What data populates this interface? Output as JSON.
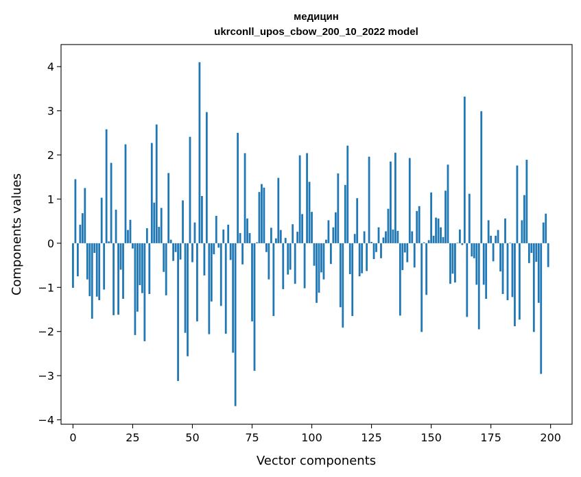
{
  "chart_data": {
    "type": "bar",
    "title_line1": "медицин",
    "title_line2": "ukrconll_upos_cbow_200_10_2022 model",
    "xlabel": "Vector components",
    "ylabel": "Components values",
    "xlim": [
      -5,
      209
    ],
    "ylim": [
      -4.1,
      4.5
    ],
    "xticks": [
      0,
      25,
      50,
      75,
      100,
      125,
      150,
      175,
      200
    ],
    "xtick_labels": [
      "0",
      "25",
      "50",
      "75",
      "100",
      "125",
      "150",
      "175",
      "200"
    ],
    "yticks": [
      -4,
      -3,
      -2,
      -1,
      0,
      1,
      2,
      3,
      4
    ],
    "ytick_labels": [
      "−4",
      "−3",
      "−2",
      "−1",
      "0",
      "1",
      "2",
      "3",
      "4"
    ],
    "bar_color": "#1f77b4",
    "x": [
      0,
      1,
      2,
      3,
      4,
      5,
      6,
      7,
      8,
      9,
      10,
      11,
      12,
      13,
      14,
      15,
      16,
      17,
      18,
      19,
      20,
      21,
      22,
      23,
      24,
      25,
      26,
      27,
      28,
      29,
      30,
      31,
      32,
      33,
      34,
      35,
      36,
      37,
      38,
      39,
      40,
      41,
      42,
      43,
      44,
      45,
      46,
      47,
      48,
      49,
      50,
      51,
      52,
      53,
      54,
      55,
      56,
      57,
      58,
      59,
      60,
      61,
      62,
      63,
      64,
      65,
      66,
      67,
      68,
      69,
      70,
      71,
      72,
      73,
      74,
      75,
      76,
      77,
      78,
      79,
      80,
      81,
      82,
      83,
      84,
      85,
      86,
      87,
      88,
      89,
      90,
      91,
      92,
      93,
      94,
      95,
      96,
      97,
      98,
      99,
      100,
      101,
      102,
      103,
      104,
      105,
      106,
      107,
      108,
      109,
      110,
      111,
      112,
      113,
      114,
      115,
      116,
      117,
      118,
      119,
      120,
      121,
      122,
      123,
      124,
      125,
      126,
      127,
      128,
      129,
      130,
      131,
      132,
      133,
      134,
      135,
      136,
      137,
      138,
      139,
      140,
      141,
      142,
      143,
      144,
      145,
      146,
      147,
      148,
      149,
      150,
      151,
      152,
      153,
      154,
      155,
      156,
      157,
      158,
      159,
      160,
      161,
      162,
      163,
      164,
      165,
      166,
      167,
      168,
      169,
      170,
      171,
      172,
      173,
      174,
      175,
      176,
      177,
      178,
      179,
      180,
      181,
      182,
      183,
      184,
      185,
      186,
      187,
      188,
      189,
      190,
      191,
      192,
      193,
      194,
      195,
      196,
      197,
      198,
      199
    ],
    "values": [
      -1.01,
      1.45,
      -0.75,
      0.42,
      0.68,
      1.25,
      -0.82,
      -1.2,
      -1.71,
      -0.22,
      -1.21,
      -1.29,
      1.03,
      -1.05,
      2.58,
      0.04,
      1.82,
      -1.63,
      0.76,
      -1.62,
      -0.6,
      -1.26,
      2.24,
      0.3,
      0.53,
      -0.12,
      -2.08,
      -1.55,
      -0.95,
      -1.13,
      -2.22,
      0.34,
      -1.15,
      2.27,
      0.92,
      2.69,
      0.37,
      0.8,
      -0.65,
      -1.18,
      1.59,
      0.08,
      -0.4,
      -0.2,
      -3.12,
      -0.37,
      0.97,
      -2.03,
      -2.56,
      2.41,
      -0.43,
      0.47,
      -1.77,
      4.1,
      1.07,
      -0.73,
      2.97,
      -2.06,
      -1.32,
      -0.25,
      0.62,
      -0.1,
      -1.42,
      0.31,
      -2.05,
      0.42,
      -0.38,
      -2.48,
      -3.69,
      2.5,
      0.23,
      -0.48,
      2.04,
      0.56,
      0.23,
      -1.77,
      -2.89,
      0.02,
      1.16,
      1.34,
      1.26,
      -0.2,
      -0.82,
      0.35,
      -1.65,
      0.11,
      1.48,
      0.3,
      -1.04,
      0.12,
      -0.71,
      -0.6,
      0.43,
      -0.92,
      0.26,
      1.99,
      0.66,
      -1.02,
      2.04,
      1.39,
      0.71,
      -0.51,
      -1.35,
      -1.12,
      -0.66,
      -0.82,
      0.08,
      0.52,
      -0.47,
      0.36,
      0.7,
      1.58,
      -1.45,
      -1.91,
      1.32,
      2.21,
      -0.7,
      -1.65,
      0.21,
      1.02,
      -0.75,
      -0.68,
      0.27,
      -0.63,
      1.96,
      0.03,
      -0.36,
      -0.2,
      0.36,
      -0.34,
      0.13,
      0.27,
      0.78,
      1.85,
      0.31,
      2.05,
      0.28,
      -1.64,
      -0.61,
      -0.21,
      -0.43,
      1.93,
      0.27,
      -0.55,
      0.73,
      0.84,
      -2.01,
      0.02,
      -1.17,
      0.07,
      1.15,
      0.17,
      0.58,
      0.56,
      0.36,
      0.14,
      1.19,
      1.78,
      -0.92,
      -0.69,
      -0.89,
      0.01,
      0.31,
      -0.04,
      3.32,
      -1.67,
      1.12,
      -0.3,
      -0.34,
      -0.94,
      -1.95,
      2.99,
      -0.94,
      -1.26,
      0.52,
      0.17,
      -0.41,
      0.17,
      0.3,
      -0.64,
      -1.15,
      0.56,
      -1.29,
      0.01,
      -1.22,
      -1.88,
      1.76,
      -1.73,
      0.52,
      1.09,
      1.89,
      -0.45,
      -0.22,
      -2.01,
      -0.42,
      -1.35,
      -2.96,
      0.47,
      0.67,
      -0.54
    ]
  }
}
